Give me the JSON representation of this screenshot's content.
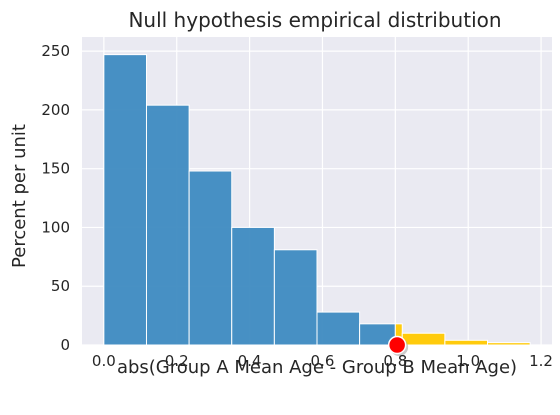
{
  "chart_data": {
    "type": "bar",
    "title": "Null hypothesis empirical distribution",
    "xlabel": "abs(Group A Mean Age - Group B Mean Age)",
    "ylabel": "Percent per unit",
    "xlim": [
      -0.06,
      1.23
    ],
    "ylim": [
      0,
      262
    ],
    "xticks": [
      "0.0",
      "0.2",
      "0.4",
      "0.6",
      "0.8",
      "1.0",
      "1.2"
    ],
    "yticks": [
      "0",
      "50",
      "100",
      "150",
      "200",
      "250"
    ],
    "grid": true,
    "bins": [
      {
        "x0": 0.0,
        "x1": 0.117,
        "value": 247,
        "region": "below"
      },
      {
        "x0": 0.117,
        "x1": 0.234,
        "value": 204,
        "region": "below"
      },
      {
        "x0": 0.234,
        "x1": 0.351,
        "value": 148,
        "region": "below"
      },
      {
        "x0": 0.351,
        "x1": 0.468,
        "value": 100,
        "region": "below"
      },
      {
        "x0": 0.468,
        "x1": 0.585,
        "value": 81,
        "region": "below"
      },
      {
        "x0": 0.585,
        "x1": 0.702,
        "value": 28,
        "region": "below"
      },
      {
        "x0": 0.702,
        "x1": 0.8,
        "value": 18,
        "region": "below"
      },
      {
        "x0": 0.8,
        "x1": 0.819,
        "value": 18,
        "region": "above"
      },
      {
        "x0": 0.819,
        "x1": 0.936,
        "value": 10,
        "region": "above"
      },
      {
        "x0": 0.936,
        "x1": 1.053,
        "value": 4,
        "region": "above"
      },
      {
        "x0": 1.053,
        "x1": 1.17,
        "value": 2,
        "region": "above"
      }
    ],
    "observed_statistic": {
      "x": 0.805,
      "y": 0
    },
    "colors": {
      "below": "#3e8bc1",
      "above": "#ffcb0c",
      "marker": "#ff0000",
      "background": "#eaeaf2",
      "grid": "#ffffff"
    }
  }
}
